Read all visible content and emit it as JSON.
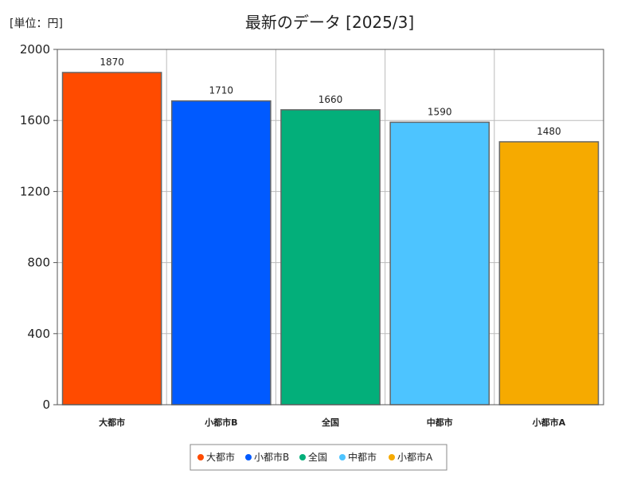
{
  "chart_data": {
    "type": "bar",
    "title": "最新のデータ [2025/3]",
    "unit_label": "[単位：円]",
    "xlabel": "",
    "ylabel": "",
    "categories": [
      "大都市",
      "小都市B",
      "全国",
      "中都市",
      "小都市A"
    ],
    "values": [
      1870,
      1710,
      1660,
      1590,
      1480
    ],
    "value_labels": [
      "1870",
      "1710",
      "1660",
      "1590",
      "1480"
    ],
    "colors": [
      "#ff4b00",
      "#005aff",
      "#03af7a",
      "#4dc4ff",
      "#f6aa00"
    ],
    "ylim": [
      0,
      2000
    ],
    "yticks": [
      0,
      400,
      800,
      1200,
      1600,
      2000
    ],
    "ytick_labels": [
      "0",
      "400",
      "800",
      "1200",
      "1600",
      "2000"
    ],
    "grid": true,
    "legend": {
      "position": "bottom",
      "entries": [
        "大都市",
        "小都市B",
        "全国",
        "中都市",
        "小都市A"
      ]
    }
  }
}
